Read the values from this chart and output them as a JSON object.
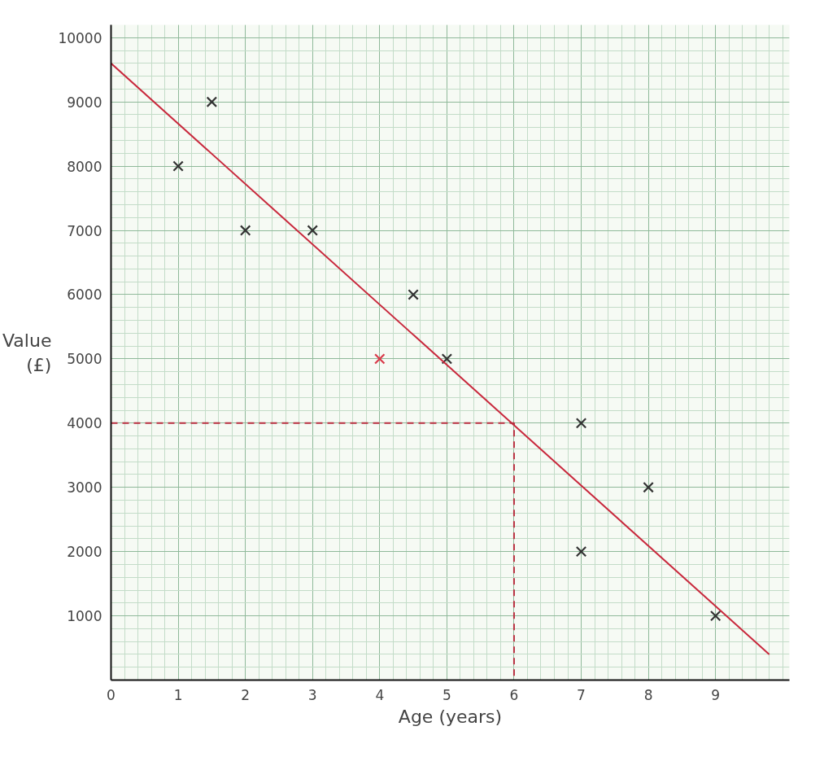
{
  "chart_data": {
    "type": "scatter",
    "xlabel": "Age (years)",
    "ylabel": "Value (£)",
    "xlim": [
      0,
      10.1
    ],
    "ylim": [
      0,
      10200
    ],
    "xticks": [
      0,
      1,
      2,
      3,
      4,
      5,
      6,
      7,
      8,
      9
    ],
    "yticks": [
      1000,
      2000,
      3000,
      4000,
      5000,
      6000,
      7000,
      8000,
      9000,
      10000
    ],
    "grid": true,
    "marker": "cross",
    "series": [
      {
        "color": "#333333",
        "x": [
          1,
          1.5,
          2,
          3,
          4.5,
          5,
          7,
          8,
          7,
          9
        ],
        "values": [
          8000,
          9000,
          7000,
          7000,
          6000,
          5000,
          4000,
          3000,
          2000,
          1000
        ]
      },
      {
        "color": "#d93a4a",
        "x": [
          4
        ],
        "values": [
          5000
        ]
      },
      {
        "type": "line",
        "marker": "none",
        "color": "#c8283c",
        "line_style": "solid",
        "x": [
          0,
          9.8
        ],
        "values": [
          9600,
          400
        ]
      },
      {
        "type": "line",
        "marker": "none",
        "color": "#b83040",
        "line_style": "dashed",
        "x": [
          0,
          6,
          6
        ],
        "values": [
          4000,
          4000,
          0
        ]
      }
    ]
  }
}
